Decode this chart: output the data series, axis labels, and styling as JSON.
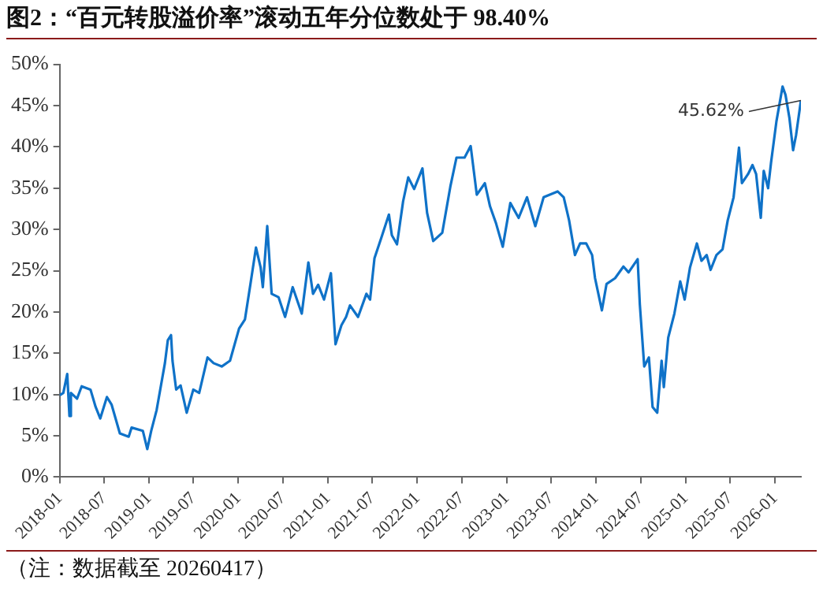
{
  "chart_data": {
    "type": "line",
    "title": "图2：“百元转股溢价率”滚动五年分位数处于 98.40%",
    "x": [
      "2018-01-01",
      "2018-01-16",
      "2018-02-01",
      "2018-02-10",
      "2018-02-16",
      "2018-03-13",
      "2018-04-01",
      "2018-05-07",
      "2018-05-28",
      "2018-06-16",
      "2018-07-13",
      "2018-08-01",
      "2018-09-04",
      "2018-10-10",
      "2018-10-22",
      "2018-12-07",
      "2018-12-25",
      "2019-01-10",
      "2019-02-01",
      "2019-03-07",
      "2019-03-19",
      "2019-04-01",
      "2019-04-07",
      "2019-04-22",
      "2019-05-10",
      "2019-06-04",
      "2019-07-01",
      "2019-07-25",
      "2019-08-28",
      "2019-09-22",
      "2019-10-25",
      "2019-11-28",
      "2020-01-04",
      "2020-01-28",
      "2020-02-19",
      "2020-03-13",
      "2020-04-01",
      "2020-04-10",
      "2020-04-28",
      "2020-05-16",
      "2020-06-13",
      "2020-07-10",
      "2020-08-10",
      "2020-09-16",
      "2020-10-13",
      "2020-11-01",
      "2020-11-22",
      "2020-12-16",
      "2021-01-13",
      "2021-02-01",
      "2021-02-25",
      "2021-03-16",
      "2021-04-01",
      "2021-05-04",
      "2021-06-07",
      "2021-06-22",
      "2021-07-10",
      "2021-08-07",
      "2021-09-07",
      "2021-09-19",
      "2021-10-10",
      "2021-11-04",
      "2021-11-25",
      "2021-12-19",
      "2022-01-22",
      "2022-02-10",
      "2022-03-07",
      "2022-04-13",
      "2022-05-16",
      "2022-06-10",
      "2022-07-13",
      "2022-08-07",
      "2022-09-01",
      "2022-10-04",
      "2022-10-25",
      "2022-11-19",
      "2022-12-16",
      "2023-01-16",
      "2023-02-19",
      "2023-03-25",
      "2023-04-28",
      "2023-06-01",
      "2023-07-28",
      "2023-08-22",
      "2023-09-13",
      "2023-10-07",
      "2023-10-28",
      "2023-11-22",
      "2023-12-16",
      "2023-12-28",
      "2024-01-25",
      "2024-02-13",
      "2024-03-19",
      "2024-04-22",
      "2024-05-13",
      "2024-06-19",
      "2024-06-28",
      "2024-07-16",
      "2024-08-04",
      "2024-08-19",
      "2024-09-07",
      "2024-09-25",
      "2024-10-04",
      "2024-10-22",
      "2024-11-16",
      "2024-12-10",
      "2024-12-28",
      "2025-01-19",
      "2025-02-16",
      "2025-03-07",
      "2025-03-28",
      "2025-04-13",
      "2025-05-07",
      "2025-06-01",
      "2025-06-22",
      "2025-07-16",
      "2025-08-07",
      "2025-08-19",
      "2025-09-13",
      "2025-10-01",
      "2025-10-16",
      "2025-11-04",
      "2025-11-16",
      "2025-12-04",
      "2025-12-16",
      "2026-01-07",
      "2026-02-01",
      "2026-02-13",
      "2026-03-01",
      "2026-03-16",
      "2026-03-28",
      "2026-04-17"
    ],
    "series": [
      {
        "color": "#0f72c8",
        "values": [
          9.9,
          10.2,
          12.5,
          7.4,
          10.2,
          9.5,
          11.0,
          10.6,
          8.5,
          7.1,
          9.7,
          8.8,
          5.3,
          4.9,
          6.0,
          5.6,
          3.4,
          5.6,
          8.1,
          13.8,
          16.6,
          17.2,
          14.1,
          10.6,
          11.1,
          7.8,
          10.6,
          10.2,
          14.5,
          13.8,
          13.4,
          14.1,
          18.0,
          19.1,
          23.3,
          27.8,
          25.4,
          23.0,
          30.4,
          22.2,
          21.8,
          19.4,
          23.0,
          19.8,
          26.0,
          22.2,
          23.3,
          21.5,
          24.7,
          16.1,
          18.4,
          19.4,
          20.8,
          19.4,
          22.2,
          21.5,
          26.5,
          29.0,
          31.8,
          29.3,
          28.2,
          33.4,
          36.3,
          34.9,
          37.4,
          32.0,
          28.6,
          29.6,
          35.2,
          38.7,
          38.7,
          40.1,
          34.2,
          35.6,
          32.8,
          30.7,
          27.9,
          33.2,
          31.4,
          33.9,
          30.4,
          33.9,
          34.6,
          33.9,
          31.1,
          26.9,
          28.3,
          28.3,
          26.9,
          24.1,
          20.2,
          23.4,
          24.1,
          25.5,
          24.8,
          26.4,
          20.9,
          13.4,
          14.5,
          8.5,
          7.8,
          14.1,
          10.9,
          16.9,
          19.8,
          23.7,
          21.5,
          25.4,
          28.3,
          26.2,
          26.9,
          25.1,
          26.9,
          27.6,
          31.1,
          33.9,
          39.9,
          35.6,
          36.7,
          37.8,
          36.7,
          31.4,
          37.1,
          35.0,
          38.1,
          43.1,
          47.3,
          46.3,
          43.5,
          39.6,
          41.4,
          45.62
        ]
      }
    ],
    "xlim": [
      "2018-01-01",
      "2026-04-17"
    ],
    "xticks": [
      "2018-01",
      "2018-07",
      "2019-01",
      "2019-07",
      "2020-01",
      "2020-07",
      "2021-01",
      "2021-07",
      "2022-01",
      "2022-07",
      "2023-01",
      "2023-07",
      "2024-01",
      "2024-07",
      "2025-01",
      "2025-07",
      "2026-01"
    ],
    "ylim": [
      0,
      50
    ],
    "yticks": [
      {
        "value": 0,
        "label": "0%"
      },
      {
        "value": 5,
        "label": "5%"
      },
      {
        "value": 10,
        "label": "10%"
      },
      {
        "value": 15,
        "label": "15%"
      },
      {
        "value": 20,
        "label": "20%"
      },
      {
        "value": 25,
        "label": "25%"
      },
      {
        "value": 30,
        "label": "30%"
      },
      {
        "value": 35,
        "label": "35%"
      },
      {
        "value": 40,
        "label": "40%"
      },
      {
        "value": 45,
        "label": "45%"
      },
      {
        "value": 50,
        "label": "50%"
      }
    ],
    "grid": false,
    "marker": "none",
    "annotations": [
      {
        "text": "45.62%",
        "x": "2026-04-17",
        "y": 45.62
      },
      "（注：数据截至 20260417）"
    ]
  }
}
